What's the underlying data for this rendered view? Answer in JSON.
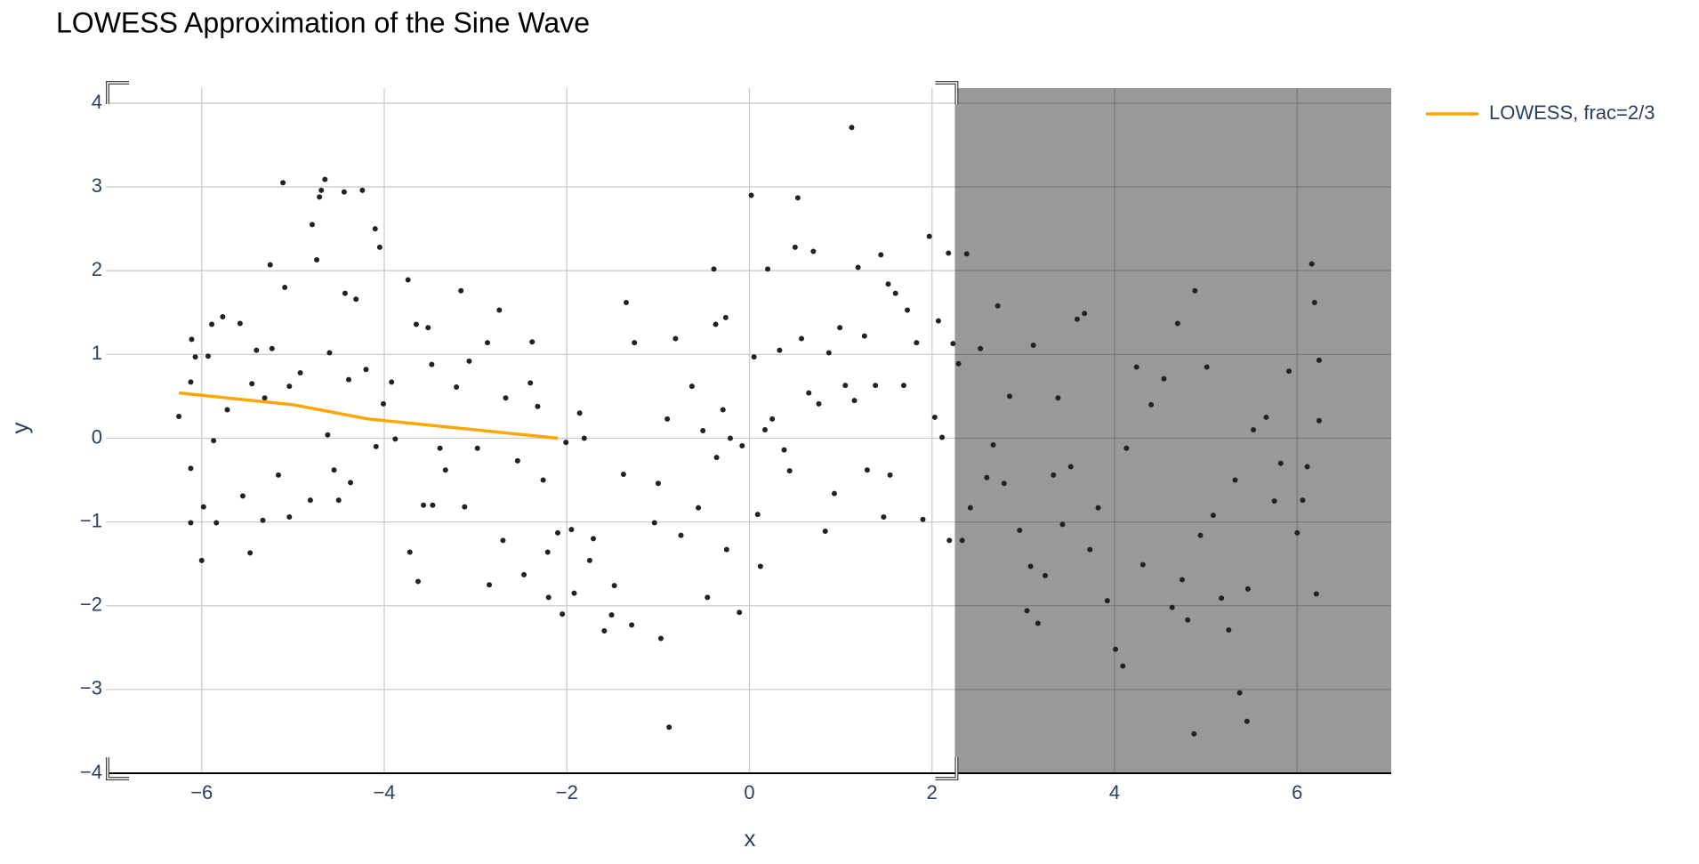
{
  "chart_data": {
    "type": "scatter",
    "title": "LOWESS Approximation of the Sine Wave",
    "x_label": "x",
    "y_label": "y",
    "xlim": [
      -7.05,
      7.03
    ],
    "ylim": [
      -4,
      4.18
    ],
    "xticks": [
      {
        "value": -6,
        "label": "−6"
      },
      {
        "value": -4,
        "label": "−4"
      },
      {
        "value": -2,
        "label": "−2"
      },
      0,
      2,
      4,
      6
    ],
    "yticks": [
      {
        "value": -4,
        "label": "−4"
      },
      {
        "value": -3,
        "label": "−3"
      },
      {
        "value": -2,
        "label": "−2"
      },
      {
        "value": -1,
        "label": "−1"
      },
      0,
      1,
      2,
      3,
      4
    ],
    "grid": true,
    "legend": "right",
    "shaded_region": {
      "x": [
        2.25,
        7.03
      ],
      "color": "#000000",
      "opacity": 0.4
    },
    "series": [
      {
        "type": "scatter",
        "color": "#222222",
        "x": [
          -6.25,
          -6.12,
          -6.11,
          -6.07,
          -6.12,
          -6.12,
          -6.0,
          -5.98,
          -5.93,
          -5.89,
          -5.87,
          -5.84,
          -5.77,
          -5.72,
          -5.58,
          -5.55,
          -5.47,
          -5.45,
          -5.4,
          -5.31,
          -5.33,
          -5.25,
          -5.23,
          -5.16,
          -5.11,
          -5.09,
          -5.04,
          -5.04,
          -4.92,
          -4.81,
          -4.79,
          -4.74,
          -4.71,
          -4.69,
          -4.65,
          -4.62,
          -4.6,
          -4.55,
          -4.5,
          -4.44,
          -4.43,
          -4.39,
          -4.37,
          -4.31,
          -4.24,
          -4.2,
          -4.1,
          -4.05,
          -4.09,
          -4.01,
          -3.92,
          -3.88,
          -3.74,
          -3.72,
          -3.65,
          -3.63,
          -3.57,
          -3.52,
          -3.48,
          -3.47,
          -3.39,
          -3.33,
          -3.21,
          -3.16,
          -3.12,
          -3.07,
          -2.98,
          -2.87,
          -2.85,
          -2.74,
          -2.7,
          -2.67,
          -2.54,
          -2.47,
          -2.4,
          -2.38,
          -2.32,
          -2.26,
          -2.21,
          -2.2,
          -2.1,
          -2.05,
          -2.01,
          -1.95,
          -1.92,
          -1.86,
          -1.81,
          -1.75,
          -1.71,
          -1.59,
          -1.51,
          -1.48,
          -1.38,
          -1.35,
          -1.29,
          -1.26,
          -1.04,
          -1.0,
          -0.97,
          -0.9,
          -0.88,
          -0.81,
          -0.75,
          -0.63,
          -0.56,
          -0.51,
          -0.46,
          -0.39,
          -0.37,
          -0.36,
          -0.29,
          -0.26,
          -0.25,
          -0.21,
          -0.11,
          -0.08,
          0.02,
          0.05,
          0.09,
          0.12,
          0.17,
          0.2,
          0.25,
          0.33,
          0.38,
          0.44,
          0.5,
          0.53,
          0.57,
          0.65,
          0.7,
          0.76,
          0.83,
          0.87,
          0.93,
          0.99,
          1.05,
          1.12,
          1.15,
          1.19,
          1.26,
          1.29,
          1.38,
          1.44,
          1.47,
          1.52,
          1.54,
          1.6,
          1.69,
          1.73,
          1.83,
          1.9,
          1.97,
          2.03,
          2.07,
          2.11,
          2.18,
          2.19,
          2.23,
          2.29,
          2.33,
          2.38,
          2.42,
          2.53,
          2.6,
          2.67,
          2.72,
          2.79,
          2.85,
          2.96,
          3.04,
          3.08,
          3.11,
          3.16,
          3.24,
          3.33,
          3.38,
          3.43,
          3.52,
          3.59,
          3.67,
          3.73,
          3.82,
          3.92,
          4.01,
          4.09,
          4.13,
          4.24,
          4.31,
          4.4,
          4.54,
          4.63,
          4.69,
          4.74,
          4.8,
          4.87,
          4.88,
          4.94,
          5.01,
          5.08,
          5.17,
          5.25,
          5.32,
          5.37,
          5.45,
          5.46,
          5.52,
          5.66,
          5.75,
          5.82,
          5.91,
          6.0,
          6.06,
          6.11,
          6.16,
          6.19,
          6.21,
          6.24,
          6.24
        ],
        "values": [
          0.26,
          0.67,
          1.18,
          0.97,
          -0.36,
          -1.01,
          -1.46,
          -0.82,
          0.98,
          1.36,
          -0.03,
          -1.01,
          1.45,
          0.34,
          1.37,
          -0.69,
          -1.37,
          0.65,
          1.05,
          0.48,
          -0.98,
          2.07,
          1.07,
          -0.44,
          3.05,
          1.8,
          0.62,
          -0.94,
          0.78,
          -0.74,
          2.55,
          2.13,
          2.88,
          2.96,
          3.09,
          0.04,
          1.02,
          -0.38,
          -0.74,
          2.94,
          1.73,
          0.7,
          -0.53,
          1.66,
          2.96,
          0.82,
          2.5,
          2.28,
          -0.1,
          0.41,
          0.67,
          -0.01,
          1.89,
          -1.36,
          1.36,
          -1.71,
          -0.8,
          1.32,
          0.88,
          -0.8,
          -0.12,
          -0.38,
          0.61,
          1.76,
          -0.82,
          0.92,
          -0.12,
          1.14,
          -1.75,
          1.53,
          -1.22,
          0.48,
          -0.27,
          -1.63,
          0.66,
          1.15,
          0.38,
          -0.5,
          -1.36,
          -1.9,
          -1.13,
          -2.1,
          -0.05,
          -1.09,
          -1.85,
          0.3,
          0.0,
          -1.46,
          -1.2,
          -2.3,
          -2.11,
          -1.76,
          -0.43,
          1.62,
          -2.23,
          1.14,
          -1.01,
          -0.54,
          -2.39,
          0.23,
          -3.45,
          1.19,
          -1.16,
          0.62,
          -0.83,
          0.09,
          -1.9,
          2.02,
          1.36,
          -0.23,
          0.34,
          1.44,
          -1.33,
          0.0,
          -2.08,
          -0.09,
          2.9,
          0.97,
          -0.91,
          -1.53,
          0.1,
          2.02,
          0.23,
          1.05,
          -0.14,
          -0.39,
          2.28,
          2.87,
          1.19,
          0.54,
          2.23,
          0.41,
          -1.11,
          1.02,
          -0.66,
          1.32,
          0.63,
          3.71,
          0.45,
          2.04,
          1.22,
          -0.38,
          0.63,
          2.19,
          -0.94,
          1.84,
          -0.44,
          1.73,
          0.63,
          1.53,
          1.14,
          -0.97,
          2.41,
          0.25,
          1.4,
          0.01,
          2.21,
          -1.22,
          1.13,
          0.89,
          -1.22,
          2.2,
          -0.83,
          1.07,
          -0.47,
          -0.08,
          1.58,
          -0.54,
          0.5,
          -1.1,
          -2.06,
          -1.53,
          1.11,
          -2.21,
          -1.64,
          -0.44,
          0.48,
          -1.03,
          -0.34,
          1.42,
          1.49,
          -1.33,
          -0.83,
          -1.94,
          -2.52,
          -2.72,
          -0.12,
          0.85,
          -1.51,
          0.4,
          0.71,
          -2.02,
          1.37,
          -1.69,
          -2.17,
          -3.53,
          1.76,
          -1.16,
          0.85,
          -0.92,
          -1.91,
          -2.29,
          -0.5,
          -3.04,
          -3.38,
          -1.8,
          0.1,
          0.25,
          -0.75,
          -0.3,
          0.8,
          -1.13,
          -0.74,
          -0.34,
          2.08,
          1.62,
          -1.86,
          0.93,
          0.21
        ]
      },
      {
        "type": "line",
        "name": "LOWESS, frac=2/3",
        "color": "#ffa500",
        "x": [
          -6.25,
          -5.0,
          -4.18,
          -3.0,
          -2.1
        ],
        "values": [
          0.54,
          0.4,
          0.23,
          0.1,
          0.0
        ]
      }
    ]
  }
}
